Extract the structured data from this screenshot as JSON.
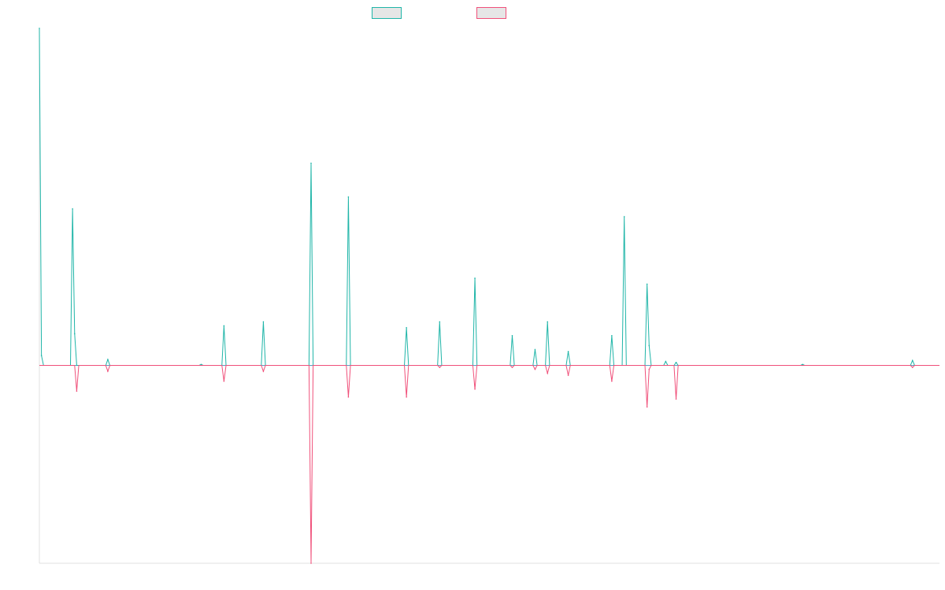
{
  "chart_data": {
    "type": "line",
    "title": "",
    "xlabel": "",
    "ylabel": "",
    "legend_position": "top-center",
    "grid": false,
    "x": [
      0,
      1,
      2,
      3,
      4,
      5,
      6,
      7,
      8,
      9,
      10,
      11,
      12,
      13,
      14,
      15,
      16,
      17,
      18,
      19,
      20,
      21,
      22,
      23,
      24,
      25,
      26,
      27,
      28,
      29,
      30,
      31,
      32,
      33,
      34,
      35,
      36,
      37,
      38,
      39,
      40,
      41,
      42,
      43,
      44,
      45,
      46,
      47,
      48,
      49,
      50,
      51,
      52,
      53,
      54,
      55,
      56,
      57,
      58,
      59,
      60,
      61,
      62,
      63,
      64,
      65,
      66,
      67,
      68,
      69,
      70,
      71,
      72,
      73,
      74,
      75,
      76,
      77,
      78,
      79,
      80,
      81,
      82,
      83,
      84,
      85,
      86,
      87,
      88,
      89,
      90,
      91,
      92,
      93,
      94,
      95,
      96,
      97,
      98,
      99,
      100,
      101,
      102,
      103,
      104,
      105,
      106,
      107,
      108,
      109,
      110,
      111,
      112,
      113,
      114,
      115,
      116,
      117,
      118,
      119,
      120,
      121,
      122,
      123,
      124,
      125,
      126,
      127,
      128,
      129,
      130,
      131,
      132,
      133,
      134,
      135,
      136,
      137,
      138,
      139,
      140,
      141,
      142,
      143,
      144,
      145,
      146,
      147,
      148,
      149,
      150,
      151,
      152,
      153,
      154,
      155,
      156,
      157,
      158,
      159,
      160,
      161,
      162,
      163,
      164,
      165,
      166,
      167,
      168,
      169,
      170,
      171,
      172,
      173,
      174,
      175,
      176,
      177,
      178,
      179,
      180,
      181,
      182,
      183,
      184,
      185,
      186,
      187,
      188,
      189,
      190,
      191,
      192,
      193,
      194,
      195,
      196,
      197,
      198,
      199,
      200,
      201,
      202,
      203,
      204,
      205,
      206,
      207,
      208,
      209,
      210,
      211,
      212,
      213,
      214,
      215,
      216,
      217,
      218,
      219,
      220,
      221,
      222,
      223,
      224,
      225,
      226,
      227,
      228,
      229,
      230,
      231,
      232,
      233,
      234,
      235,
      236,
      237,
      238,
      239,
      240,
      241,
      242,
      243,
      244,
      245,
      246,
      247,
      248,
      249,
      250,
      251,
      252,
      253,
      254,
      255,
      256,
      257,
      258,
      259,
      260,
      261,
      262,
      263,
      264,
      265,
      266,
      267,
      268,
      269,
      270,
      271,
      272,
      273,
      274,
      275,
      276,
      277,
      278,
      279,
      280,
      281,
      282,
      283,
      284,
      285,
      286,
      287,
      288,
      289,
      290,
      291,
      292,
      293,
      294,
      295,
      296,
      297,
      298,
      299,
      300,
      301,
      302,
      303,
      304,
      305,
      306,
      307,
      308,
      309,
      310,
      311,
      312,
      313,
      314,
      315,
      316,
      317,
      318,
      319,
      320,
      321,
      322,
      323,
      324,
      325,
      326,
      327,
      328,
      329,
      330,
      331,
      332,
      333,
      334,
      335,
      336,
      337,
      338,
      339,
      340,
      341,
      342,
      343,
      344,
      345,
      346,
      347,
      348,
      349,
      350,
      351,
      352,
      353,
      354,
      355,
      356,
      357,
      358,
      359,
      360,
      361,
      362,
      363,
      364,
      365,
      366,
      367,
      368,
      369,
      370,
      371,
      372,
      373,
      374,
      375,
      376,
      377,
      378,
      379,
      380,
      381,
      382,
      383,
      384,
      385,
      386,
      387,
      388,
      389,
      390,
      391,
      392,
      393,
      394,
      395,
      396,
      397,
      398,
      399,
      400,
      401,
      402,
      403,
      404,
      405,
      406,
      407,
      408,
      409,
      410,
      411,
      412,
      413,
      414,
      415,
      416,
      417,
      418,
      419,
      420,
      421,
      422,
      423,
      424,
      425,
      426,
      427,
      428,
      429,
      430,
      431,
      432,
      433,
      434
    ],
    "ylim": [
      -100,
      170
    ],
    "series": [
      {
        "name": "",
        "color": "#1fb5a8",
        "peaks": [
          {
            "x": 0,
            "y": 170
          },
          {
            "x": 1,
            "y": 5
          },
          {
            "x": 16,
            "y": 79
          },
          {
            "x": 17,
            "y": 16
          },
          {
            "x": 33,
            "y": 3
          },
          {
            "x": 78,
            "y": 0.5
          },
          {
            "x": 89,
            "y": 20
          },
          {
            "x": 108,
            "y": 22
          },
          {
            "x": 131,
            "y": 102
          },
          {
            "x": 149,
            "y": 85
          },
          {
            "x": 177,
            "y": 19
          },
          {
            "x": 193,
            "y": 22
          },
          {
            "x": 210,
            "y": 44
          },
          {
            "x": 228,
            "y": 15
          },
          {
            "x": 239,
            "y": 8
          },
          {
            "x": 245,
            "y": 22
          },
          {
            "x": 255,
            "y": 7
          },
          {
            "x": 276,
            "y": 15
          },
          {
            "x": 282,
            "y": 75
          },
          {
            "x": 293,
            "y": 41
          },
          {
            "x": 294,
            "y": 10
          },
          {
            "x": 302,
            "y": 2
          },
          {
            "x": 307,
            "y": 1.5
          },
          {
            "x": 368,
            "y": 0.5
          },
          {
            "x": 421,
            "y": 2.5
          }
        ]
      },
      {
        "name": "",
        "color": "#f0507a",
        "peaks": [
          {
            "x": 18,
            "y": -13
          },
          {
            "x": 33,
            "y": -3
          },
          {
            "x": 89,
            "y": -8
          },
          {
            "x": 108,
            "y": -3
          },
          {
            "x": 131,
            "y": -100
          },
          {
            "x": 149,
            "y": -16
          },
          {
            "x": 177,
            "y": -16
          },
          {
            "x": 193,
            "y": -1
          },
          {
            "x": 210,
            "y": -12
          },
          {
            "x": 228,
            "y": -1
          },
          {
            "x": 239,
            "y": -2
          },
          {
            "x": 245,
            "y": -4
          },
          {
            "x": 255,
            "y": -5
          },
          {
            "x": 276,
            "y": -8
          },
          {
            "x": 293,
            "y": -21
          },
          {
            "x": 294,
            "y": -2
          },
          {
            "x": 307,
            "y": -17
          },
          {
            "x": 421,
            "y": -1
          }
        ]
      }
    ]
  }
}
